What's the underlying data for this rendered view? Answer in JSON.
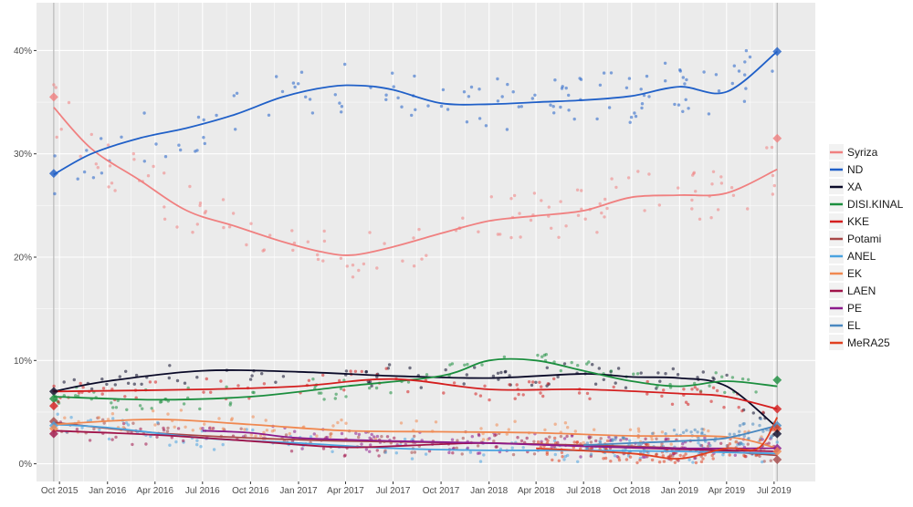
{
  "chart_data": {
    "type": "line",
    "title": "",
    "xlabel": "",
    "ylabel": "",
    "ylim": [
      -1,
      44
    ],
    "xlim": [
      "2015-09-01",
      "2019-07-31"
    ],
    "grid": true,
    "legend_position": "right",
    "x_ticks": [
      "Oct 2015",
      "Jan 2016",
      "Apr 2016",
      "Jul 2016",
      "Oct 2016",
      "Jan 2017",
      "Apr 2017",
      "Jul 2017",
      "Oct 2017",
      "Jan 2018",
      "Apr 2018",
      "Jul 2018",
      "Oct 2018",
      "Jan 2019",
      "Apr 2019",
      "Jul 2019"
    ],
    "x_tick_dates": [
      "2015-10-01",
      "2016-01-01",
      "2016-04-01",
      "2016-07-01",
      "2016-10-01",
      "2017-01-01",
      "2017-04-01",
      "2017-07-01",
      "2017-10-01",
      "2018-01-01",
      "2018-04-01",
      "2018-07-01",
      "2018-10-01",
      "2019-01-01",
      "2019-04-01",
      "2019-07-01"
    ],
    "y_ticks": [
      0,
      10,
      20,
      30,
      40
    ],
    "y_tick_labels": [
      "0%",
      "10%",
      "20%",
      "30%",
      "40%"
    ],
    "election_markers": [
      {
        "date": "2015-09-20",
        "values": {
          "Syriza": 35.5,
          "ND": 28.1,
          "XA": 7.0,
          "DISI.KINAL": 6.3,
          "KKE": 5.6,
          "Potami": 4.1,
          "ANEL": 3.7,
          "EK": 3.4,
          "LAEN": 2.9
        }
      },
      {
        "date": "2019-07-07",
        "values": {
          "ND": 39.9,
          "Syriza": 31.5,
          "DISI.KINAL": 8.1,
          "KKE": 5.3,
          "EL": 3.7,
          "MeRA25": 3.4,
          "XA": 2.9,
          "PE": 1.5,
          "EK": 1.2,
          "Potami": 0.4
        }
      }
    ],
    "series": [
      {
        "name": "Syriza",
        "color": "#f08080",
        "points": [
          [
            "2015-09-20",
            34.5
          ],
          [
            "2015-12-01",
            30.5
          ],
          [
            "2016-03-01",
            27.5
          ],
          [
            "2016-06-01",
            24.5
          ],
          [
            "2016-09-01",
            23.0
          ],
          [
            "2016-12-01",
            21.5
          ],
          [
            "2017-02-15",
            20.5
          ],
          [
            "2017-04-15",
            20.2
          ],
          [
            "2017-07-01",
            21.0
          ],
          [
            "2017-10-01",
            22.3
          ],
          [
            "2018-01-01",
            23.5
          ],
          [
            "2018-04-01",
            24.0
          ],
          [
            "2018-07-01",
            24.5
          ],
          [
            "2018-10-01",
            25.8
          ],
          [
            "2019-01-01",
            26.0
          ],
          [
            "2019-04-01",
            26.2
          ],
          [
            "2019-07-07",
            28.5
          ]
        ]
      },
      {
        "name": "ND",
        "color": "#2060c8",
        "points": [
          [
            "2015-09-20",
            28.0
          ],
          [
            "2015-12-01",
            30.0
          ],
          [
            "2016-03-01",
            31.5
          ],
          [
            "2016-06-01",
            32.5
          ],
          [
            "2016-09-01",
            33.8
          ],
          [
            "2016-12-01",
            35.5
          ],
          [
            "2017-03-01",
            36.5
          ],
          [
            "2017-05-01",
            36.6
          ],
          [
            "2017-07-01",
            36.2
          ],
          [
            "2017-10-01",
            34.9
          ],
          [
            "2018-01-01",
            34.8
          ],
          [
            "2018-04-01",
            35.0
          ],
          [
            "2018-07-01",
            35.2
          ],
          [
            "2018-10-01",
            35.6
          ],
          [
            "2019-01-01",
            36.5
          ],
          [
            "2019-04-01",
            36.0
          ],
          [
            "2019-07-07",
            39.9
          ]
        ]
      },
      {
        "name": "XA",
        "color": "#0a0a28",
        "points": [
          [
            "2015-09-20",
            7.0
          ],
          [
            "2016-01-01",
            8.0
          ],
          [
            "2016-07-01",
            9.0
          ],
          [
            "2017-01-01",
            8.9
          ],
          [
            "2017-07-01",
            8.5
          ],
          [
            "2018-01-01",
            8.3
          ],
          [
            "2018-07-01",
            8.7
          ],
          [
            "2018-10-01",
            8.4
          ],
          [
            "2019-01-01",
            8.3
          ],
          [
            "2019-04-01",
            7.5
          ],
          [
            "2019-07-07",
            3.5
          ]
        ]
      },
      {
        "name": "DISI.KINAL",
        "color": "#1b8e3e",
        "points": [
          [
            "2015-09-20",
            6.5
          ],
          [
            "2016-04-01",
            6.2
          ],
          [
            "2016-10-01",
            6.5
          ],
          [
            "2017-04-01",
            7.5
          ],
          [
            "2017-10-01",
            8.5
          ],
          [
            "2018-01-01",
            10.0
          ],
          [
            "2018-04-01",
            10.0
          ],
          [
            "2018-07-01",
            9.0
          ],
          [
            "2018-10-01",
            8.0
          ],
          [
            "2019-01-01",
            7.5
          ],
          [
            "2019-04-01",
            8.0
          ],
          [
            "2019-07-07",
            7.5
          ]
        ]
      },
      {
        "name": "KKE",
        "color": "#d41e1e",
        "points": [
          [
            "2015-09-20",
            7.0
          ],
          [
            "2016-07-01",
            7.2
          ],
          [
            "2017-01-01",
            7.5
          ],
          [
            "2017-07-01",
            8.2
          ],
          [
            "2018-01-01",
            7.2
          ],
          [
            "2018-07-01",
            7.2
          ],
          [
            "2019-01-01",
            6.8
          ],
          [
            "2019-04-01",
            6.5
          ],
          [
            "2019-07-07",
            5.3
          ]
        ]
      },
      {
        "name": "Potami",
        "color": "#a84848",
        "points": [
          [
            "2015-09-20",
            4.0
          ],
          [
            "2016-04-01",
            3.0
          ],
          [
            "2016-10-01",
            2.5
          ],
          [
            "2017-04-01",
            2.2
          ],
          [
            "2018-01-01",
            2.0
          ],
          [
            "2018-07-01",
            1.8
          ],
          [
            "2019-01-01",
            1.5
          ],
          [
            "2019-07-07",
            0.8
          ]
        ]
      },
      {
        "name": "ANEL",
        "color": "#4aa3e0",
        "points": [
          [
            "2015-09-20",
            3.8
          ],
          [
            "2016-01-01",
            3.5
          ],
          [
            "2016-07-01",
            2.5
          ],
          [
            "2017-01-01",
            2.0
          ],
          [
            "2017-07-01",
            1.5
          ],
          [
            "2018-01-01",
            1.3
          ],
          [
            "2018-07-01",
            1.3
          ],
          [
            "2019-01-01",
            1.2
          ],
          [
            "2019-07-07",
            1.0
          ]
        ]
      },
      {
        "name": "EK",
        "color": "#f08850",
        "points": [
          [
            "2015-09-20",
            3.8
          ],
          [
            "2016-04-01",
            4.3
          ],
          [
            "2016-10-01",
            3.8
          ],
          [
            "2017-04-01",
            3.2
          ],
          [
            "2017-10-01",
            3.1
          ],
          [
            "2018-04-01",
            3.0
          ],
          [
            "2018-10-01",
            2.7
          ],
          [
            "2019-04-01",
            2.6
          ],
          [
            "2019-07-07",
            1.5
          ]
        ]
      },
      {
        "name": "LAEN",
        "color": "#a0144a",
        "points": [
          [
            "2015-09-20",
            3.2
          ],
          [
            "2016-04-01",
            2.8
          ],
          [
            "2016-10-01",
            2.2
          ],
          [
            "2017-04-01",
            1.6
          ],
          [
            "2017-10-01",
            1.9
          ],
          [
            "2018-01-01",
            2.0
          ],
          [
            "2018-07-01",
            1.7
          ],
          [
            "2019-01-01",
            1.4
          ],
          [
            "2019-07-07",
            1.2
          ]
        ]
      },
      {
        "name": "PE",
        "color": "#8c1a8c",
        "points": [
          [
            "2016-07-01",
            3.2
          ],
          [
            "2016-10-01",
            3.0
          ],
          [
            "2017-01-01",
            2.5
          ],
          [
            "2017-07-01",
            2.2
          ],
          [
            "2018-01-01",
            2.0
          ],
          [
            "2018-07-01",
            1.7
          ],
          [
            "2019-01-01",
            1.5
          ],
          [
            "2019-07-07",
            1.5
          ]
        ]
      },
      {
        "name": "EL",
        "color": "#4a88c0",
        "points": [
          [
            "2018-07-01",
            1.8
          ],
          [
            "2018-10-01",
            2.0
          ],
          [
            "2019-01-01",
            2.2
          ],
          [
            "2019-04-01",
            2.5
          ],
          [
            "2019-07-07",
            3.7
          ]
        ]
      },
      {
        "name": "MeRA25",
        "color": "#e04020",
        "points": [
          [
            "2018-04-01",
            1.5
          ],
          [
            "2018-10-01",
            1.0
          ],
          [
            "2019-01-01",
            0.5
          ],
          [
            "2019-04-01",
            1.5
          ],
          [
            "2019-06-01",
            1.5
          ],
          [
            "2019-07-07",
            4.5
          ]
        ]
      }
    ]
  }
}
